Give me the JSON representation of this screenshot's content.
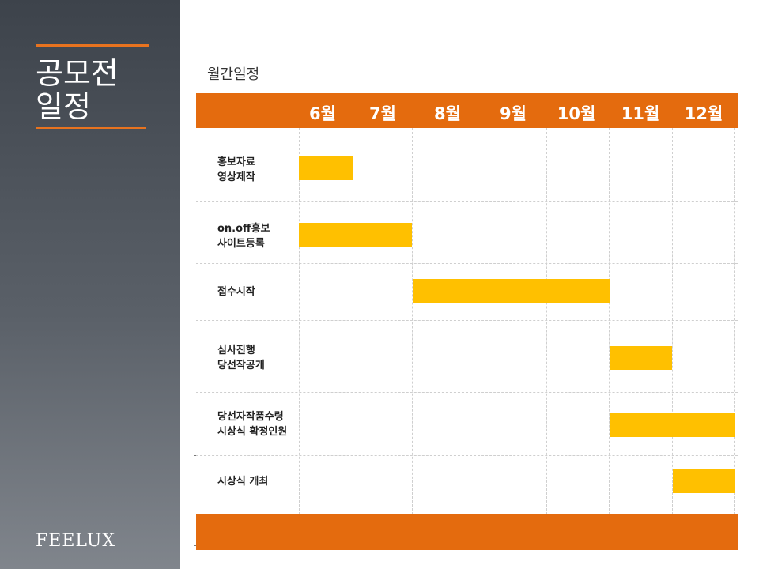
{
  "sidebar": {
    "title_line1": "공모전",
    "title_line2": "일정",
    "logo": "FEELUX"
  },
  "section_title": "월간일정",
  "colors": {
    "accent_orange": "#e46b0e",
    "bar_yellow": "#ffc000",
    "sidebar_dark": "#3d434b"
  },
  "months": [
    "6월",
    "7월",
    "8월",
    "9월",
    "10월",
    "11월",
    "12월"
  ],
  "tasks": [
    {
      "line1": "홍보자료",
      "line2": "영상제작",
      "start": "6월",
      "end": "6월"
    },
    {
      "line1": "on.off홍보",
      "line2": "사이트등록",
      "start": "6월",
      "end": "7월"
    },
    {
      "line1": "접수시작",
      "line2": "",
      "start": "8월",
      "end": "10월"
    },
    {
      "line1": "심사진행",
      "line2": "당선작공개",
      "start": "11월",
      "end": "11월"
    },
    {
      "line1": "당선자작품수령",
      "line2": "시상식 확정인원",
      "start": "11월",
      "end": "12월"
    },
    {
      "line1": "시상식 개최",
      "line2": "",
      "start": "12월",
      "end": "12월"
    }
  ]
}
